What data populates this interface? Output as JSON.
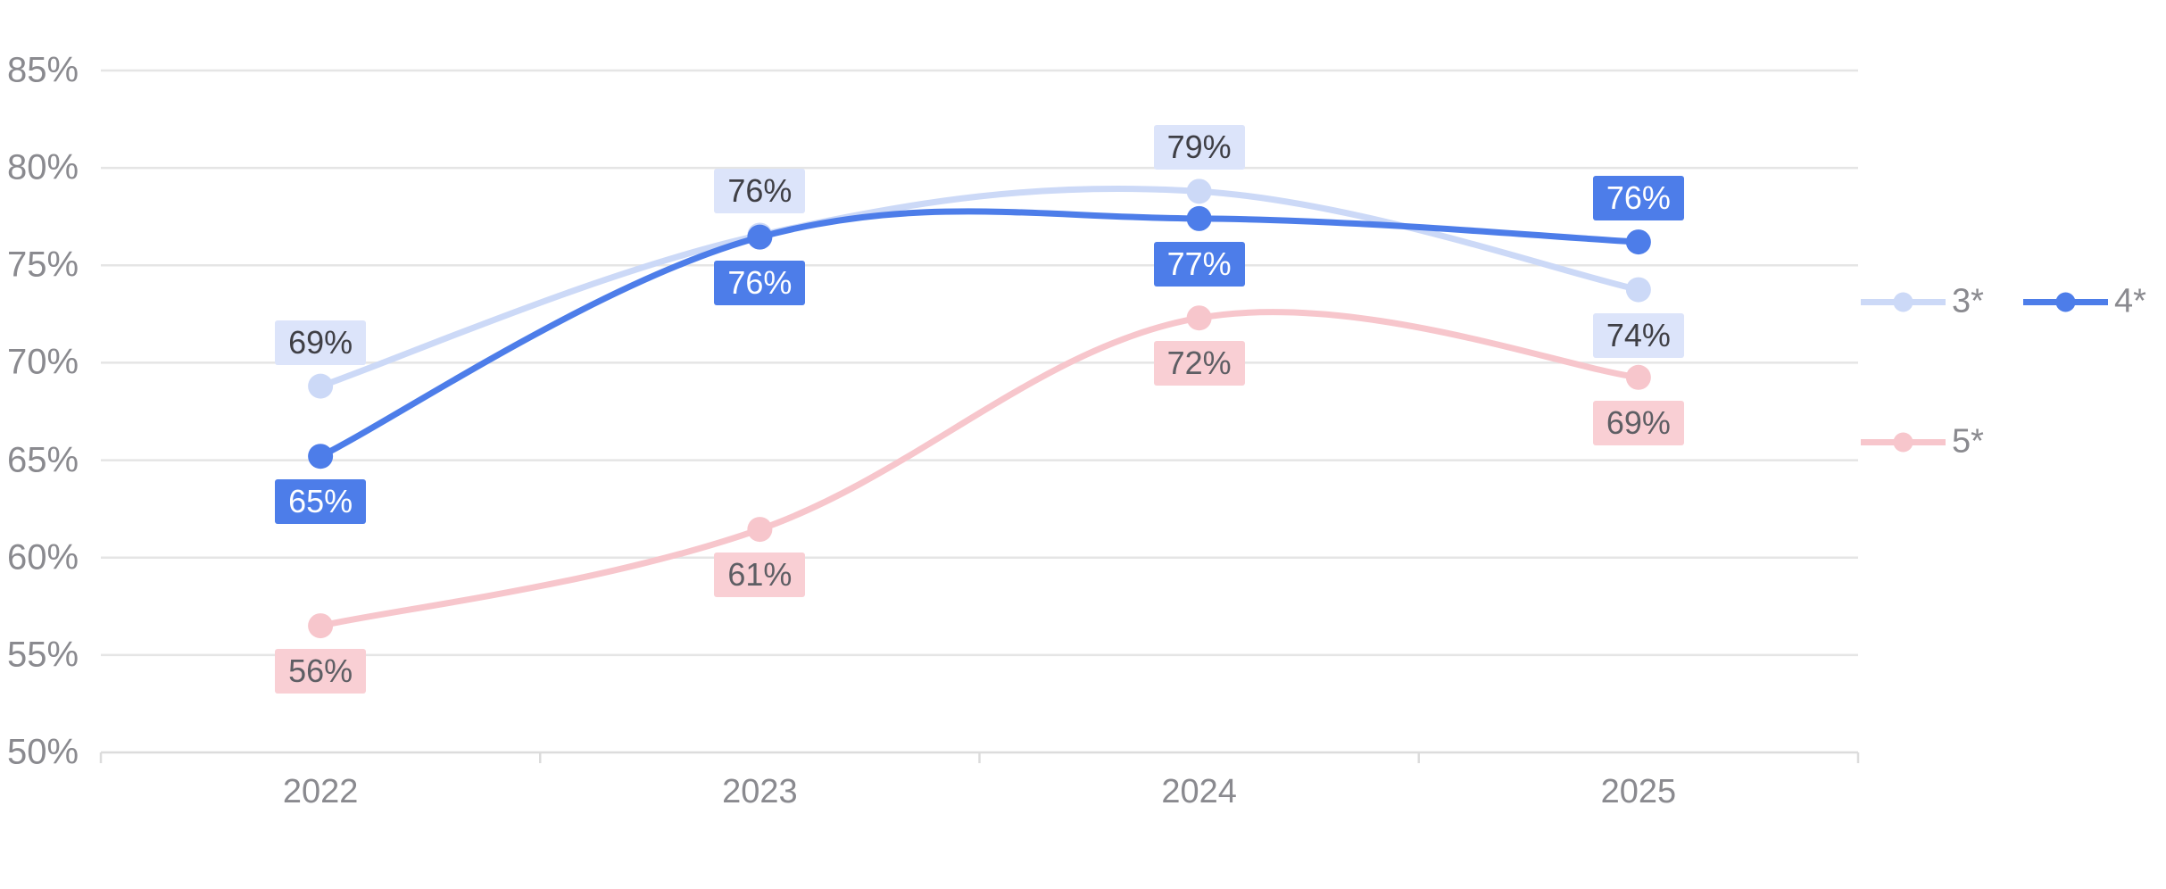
{
  "chart_data": {
    "type": "line",
    "categories": [
      "2022",
      "2023",
      "2024",
      "2025"
    ],
    "series": [
      {
        "name": "3*",
        "color": "#ccd9f7",
        "label_bg": "#dce4fa",
        "label_color": "#3f3f45",
        "values": [
          69,
          76,
          79,
          74
        ],
        "labels": [
          "69%",
          "76%",
          "79%",
          "74%"
        ],
        "point_values": [
          68.8,
          76.55,
          78.8,
          73.75
        ]
      },
      {
        "name": "4*",
        "color": "#4d7de9",
        "label_bg": "#4d7de9",
        "label_color": "#ffffff",
        "values": [
          65,
          76,
          77,
          76
        ],
        "labels": [
          "65%",
          "76%",
          "77%",
          "76%"
        ],
        "point_values": [
          65.2,
          76.45,
          77.4,
          76.2
        ]
      },
      {
        "name": "5*",
        "color": "#f7c6cc",
        "label_bg": "#f9cfd4",
        "label_color": "#5e5e64",
        "values": [
          56,
          61,
          72,
          69
        ],
        "labels": [
          "56%",
          "61%",
          "72%",
          "69%"
        ],
        "point_values": [
          56.5,
          61.45,
          72.3,
          69.25
        ]
      }
    ],
    "y_axis": {
      "min": 50,
      "max": 85,
      "step": 5,
      "tick_labels": [
        "85%",
        "80%",
        "75%",
        "70%",
        "65%",
        "60%",
        "55%",
        "50%"
      ]
    },
    "x_axis": {
      "tick_labels": [
        "2022",
        "2023",
        "2024",
        "2025"
      ]
    },
    "grid": true,
    "legend_position": "right",
    "colors": {
      "grid": "#e5e5e5",
      "axis": "#dcdcdc",
      "tick_text": "#8a8a8f"
    }
  }
}
